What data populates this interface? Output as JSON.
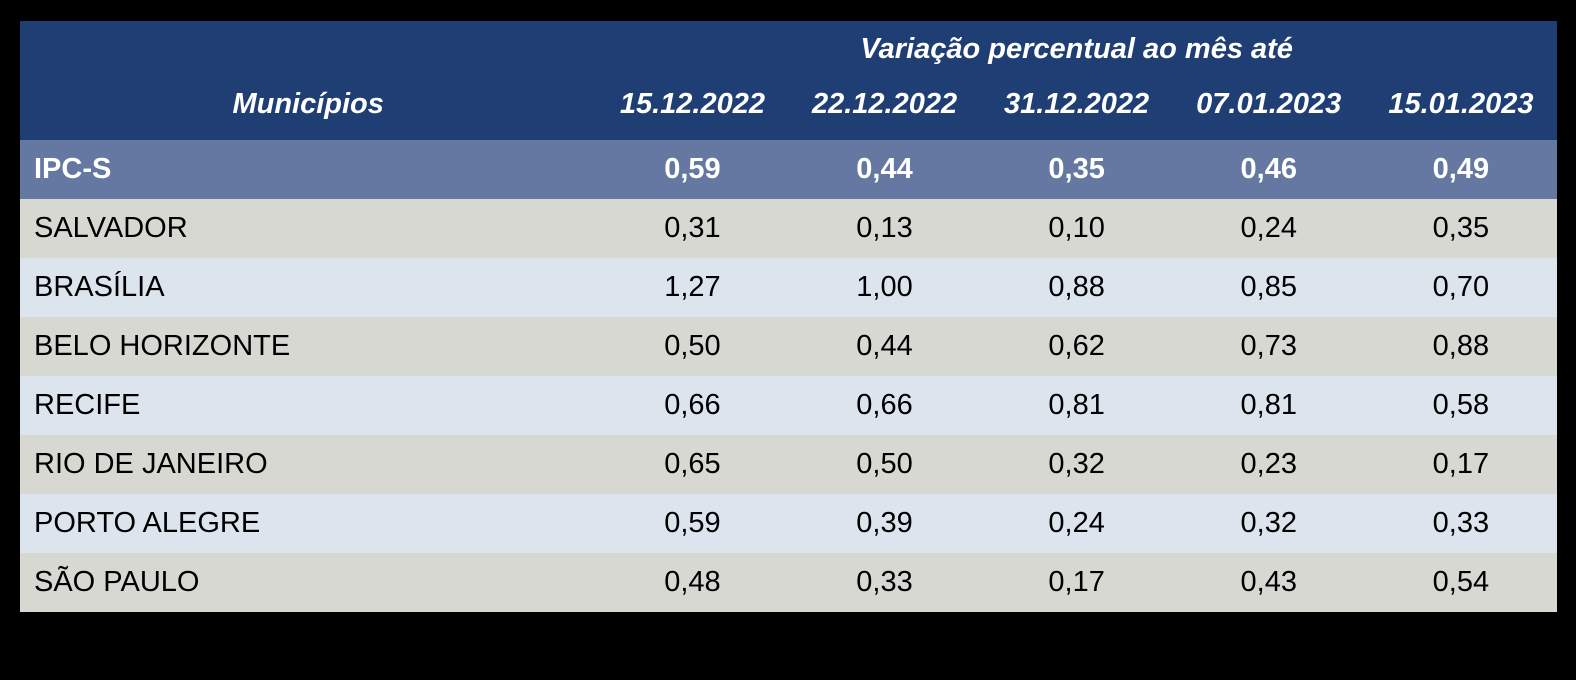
{
  "chart_data": {
    "type": "table",
    "title": "Variação percentual ao mês até",
    "row_header_label": "Municípios",
    "columns": [
      "15.12.2022",
      "22.12.2022",
      "31.12.2022",
      "07.01.2023",
      "15.01.2023"
    ],
    "rows": [
      {
        "name": "IPC-S",
        "highlight": true,
        "values": [
          "0,59",
          "0,44",
          "0,35",
          "0,46",
          "0,49"
        ]
      },
      {
        "name": "SALVADOR",
        "highlight": false,
        "values": [
          "0,31",
          "0,13",
          "0,10",
          "0,24",
          "0,35"
        ]
      },
      {
        "name": "BRASÍLIA",
        "highlight": false,
        "values": [
          "1,27",
          "1,00",
          "0,88",
          "0,85",
          "0,70"
        ]
      },
      {
        "name": "BELO HORIZONTE",
        "highlight": false,
        "values": [
          "0,50",
          "0,44",
          "0,62",
          "0,73",
          "0,88"
        ]
      },
      {
        "name": "RECIFE",
        "highlight": false,
        "values": [
          "0,66",
          "0,66",
          "0,81",
          "0,81",
          "0,58"
        ]
      },
      {
        "name": "RIO DE JANEIRO",
        "highlight": false,
        "values": [
          "0,65",
          "0,50",
          "0,32",
          "0,23",
          "0,17"
        ]
      },
      {
        "name": "PORTO ALEGRE",
        "highlight": false,
        "values": [
          "0,59",
          "0,39",
          "0,24",
          "0,32",
          "0,33"
        ]
      },
      {
        "name": "SÃO PAULO",
        "highlight": false,
        "values": [
          "0,48",
          "0,33",
          "0,17",
          "0,43",
          "0,54"
        ]
      }
    ]
  },
  "colors": {
    "background": "#000000",
    "header_bg": "#1F3E74",
    "header_text": "#FFFFFF",
    "highlight_row_bg": "#6478A2",
    "highlight_row_text": "#FFFFFF",
    "row_gray_bg": "#D8D8D3",
    "row_blue_bg": "#DCE5EE",
    "body_text": "#000000"
  }
}
